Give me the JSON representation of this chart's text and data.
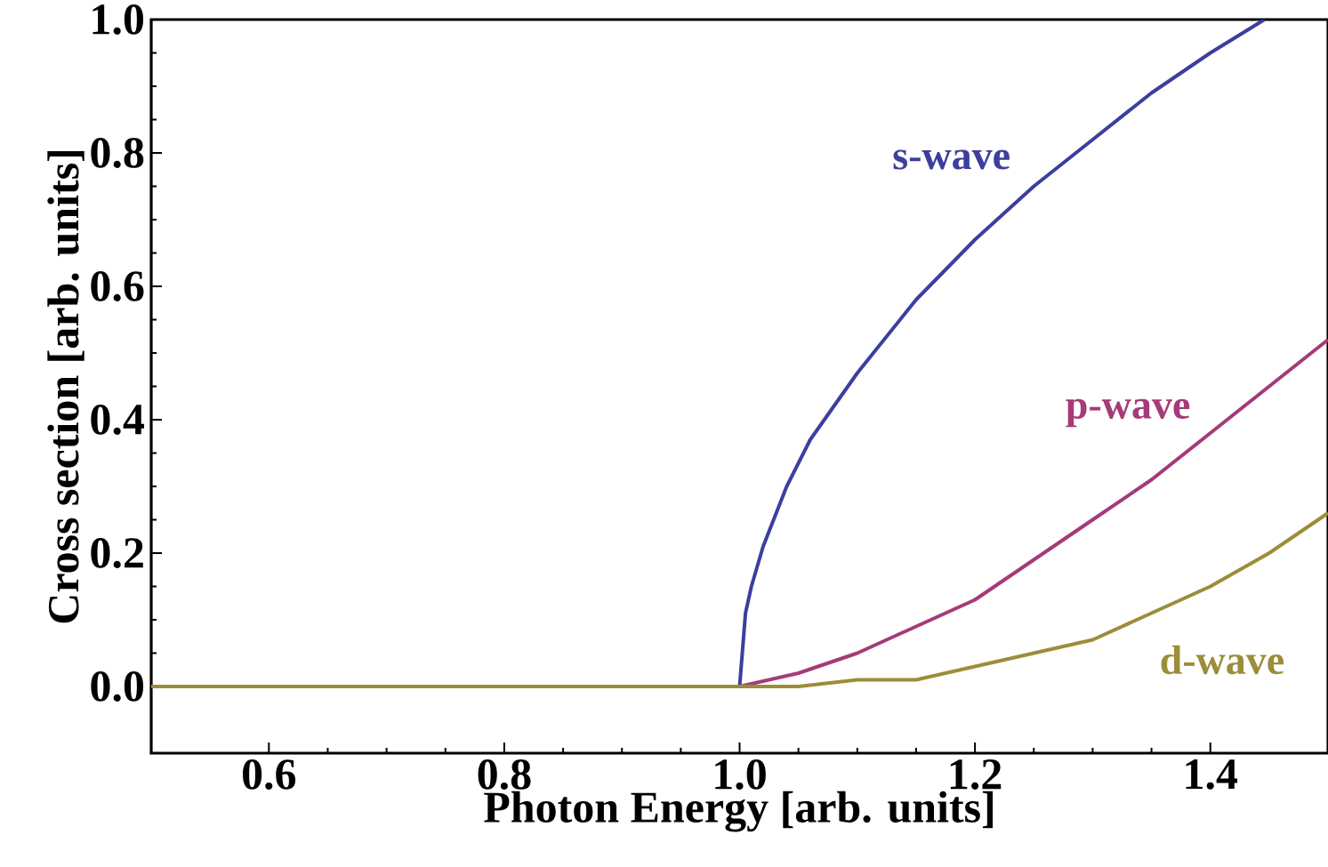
{
  "chart_data": {
    "type": "line",
    "xlabel": "Photon Energy [arb. units]",
    "ylabel": "Cross section [arb. units]",
    "xlim": [
      0.5,
      1.5
    ],
    "ylim": [
      -0.1,
      1.0
    ],
    "xticks": [
      0.6,
      0.8,
      {
        "value": 1.0,
        "label": "1.0"
      },
      1.2,
      1.4
    ],
    "yticks": [
      {
        "value": 0,
        "label": "0.0"
      },
      0.2,
      0.4,
      0.6,
      0.8,
      {
        "value": 1.0,
        "label": "1.0"
      }
    ],
    "grid": false,
    "legend": false,
    "marker": "none",
    "line_style": "solid",
    "series": [
      {
        "name": "s-wave",
        "color": "#3b3f9e",
        "x": [
          0.5,
          1.0,
          1.005,
          1.01,
          1.02,
          1.04,
          1.06,
          1.08,
          1.1,
          1.15,
          1.2,
          1.25,
          1.3,
          1.35,
          1.4,
          1.446
        ],
        "values": [
          0,
          0,
          0.11,
          0.15,
          0.21,
          0.3,
          0.37,
          0.42,
          0.47,
          0.58,
          0.67,
          0.75,
          0.82,
          0.89,
          0.95,
          1.0
        ]
      },
      {
        "name": "p-wave",
        "color": "#a63a78",
        "x": [
          0.5,
          1.0,
          1.05,
          1.1,
          1.15,
          1.2,
          1.25,
          1.3,
          1.35,
          1.4,
          1.45,
          1.5
        ],
        "values": [
          0,
          0,
          0.02,
          0.05,
          0.09,
          0.13,
          0.19,
          0.25,
          0.31,
          0.38,
          0.45,
          0.52
        ]
      },
      {
        "name": "d-wave",
        "color": "#9c8d3a",
        "x": [
          0.5,
          1.0,
          1.05,
          1.1,
          1.15,
          1.2,
          1.25,
          1.3,
          1.35,
          1.4,
          1.45,
          1.5
        ],
        "values": [
          0,
          0,
          0,
          0.01,
          0.01,
          0.03,
          0.05,
          0.07,
          0.11,
          0.15,
          0.2,
          0.26
        ]
      }
    ]
  }
}
